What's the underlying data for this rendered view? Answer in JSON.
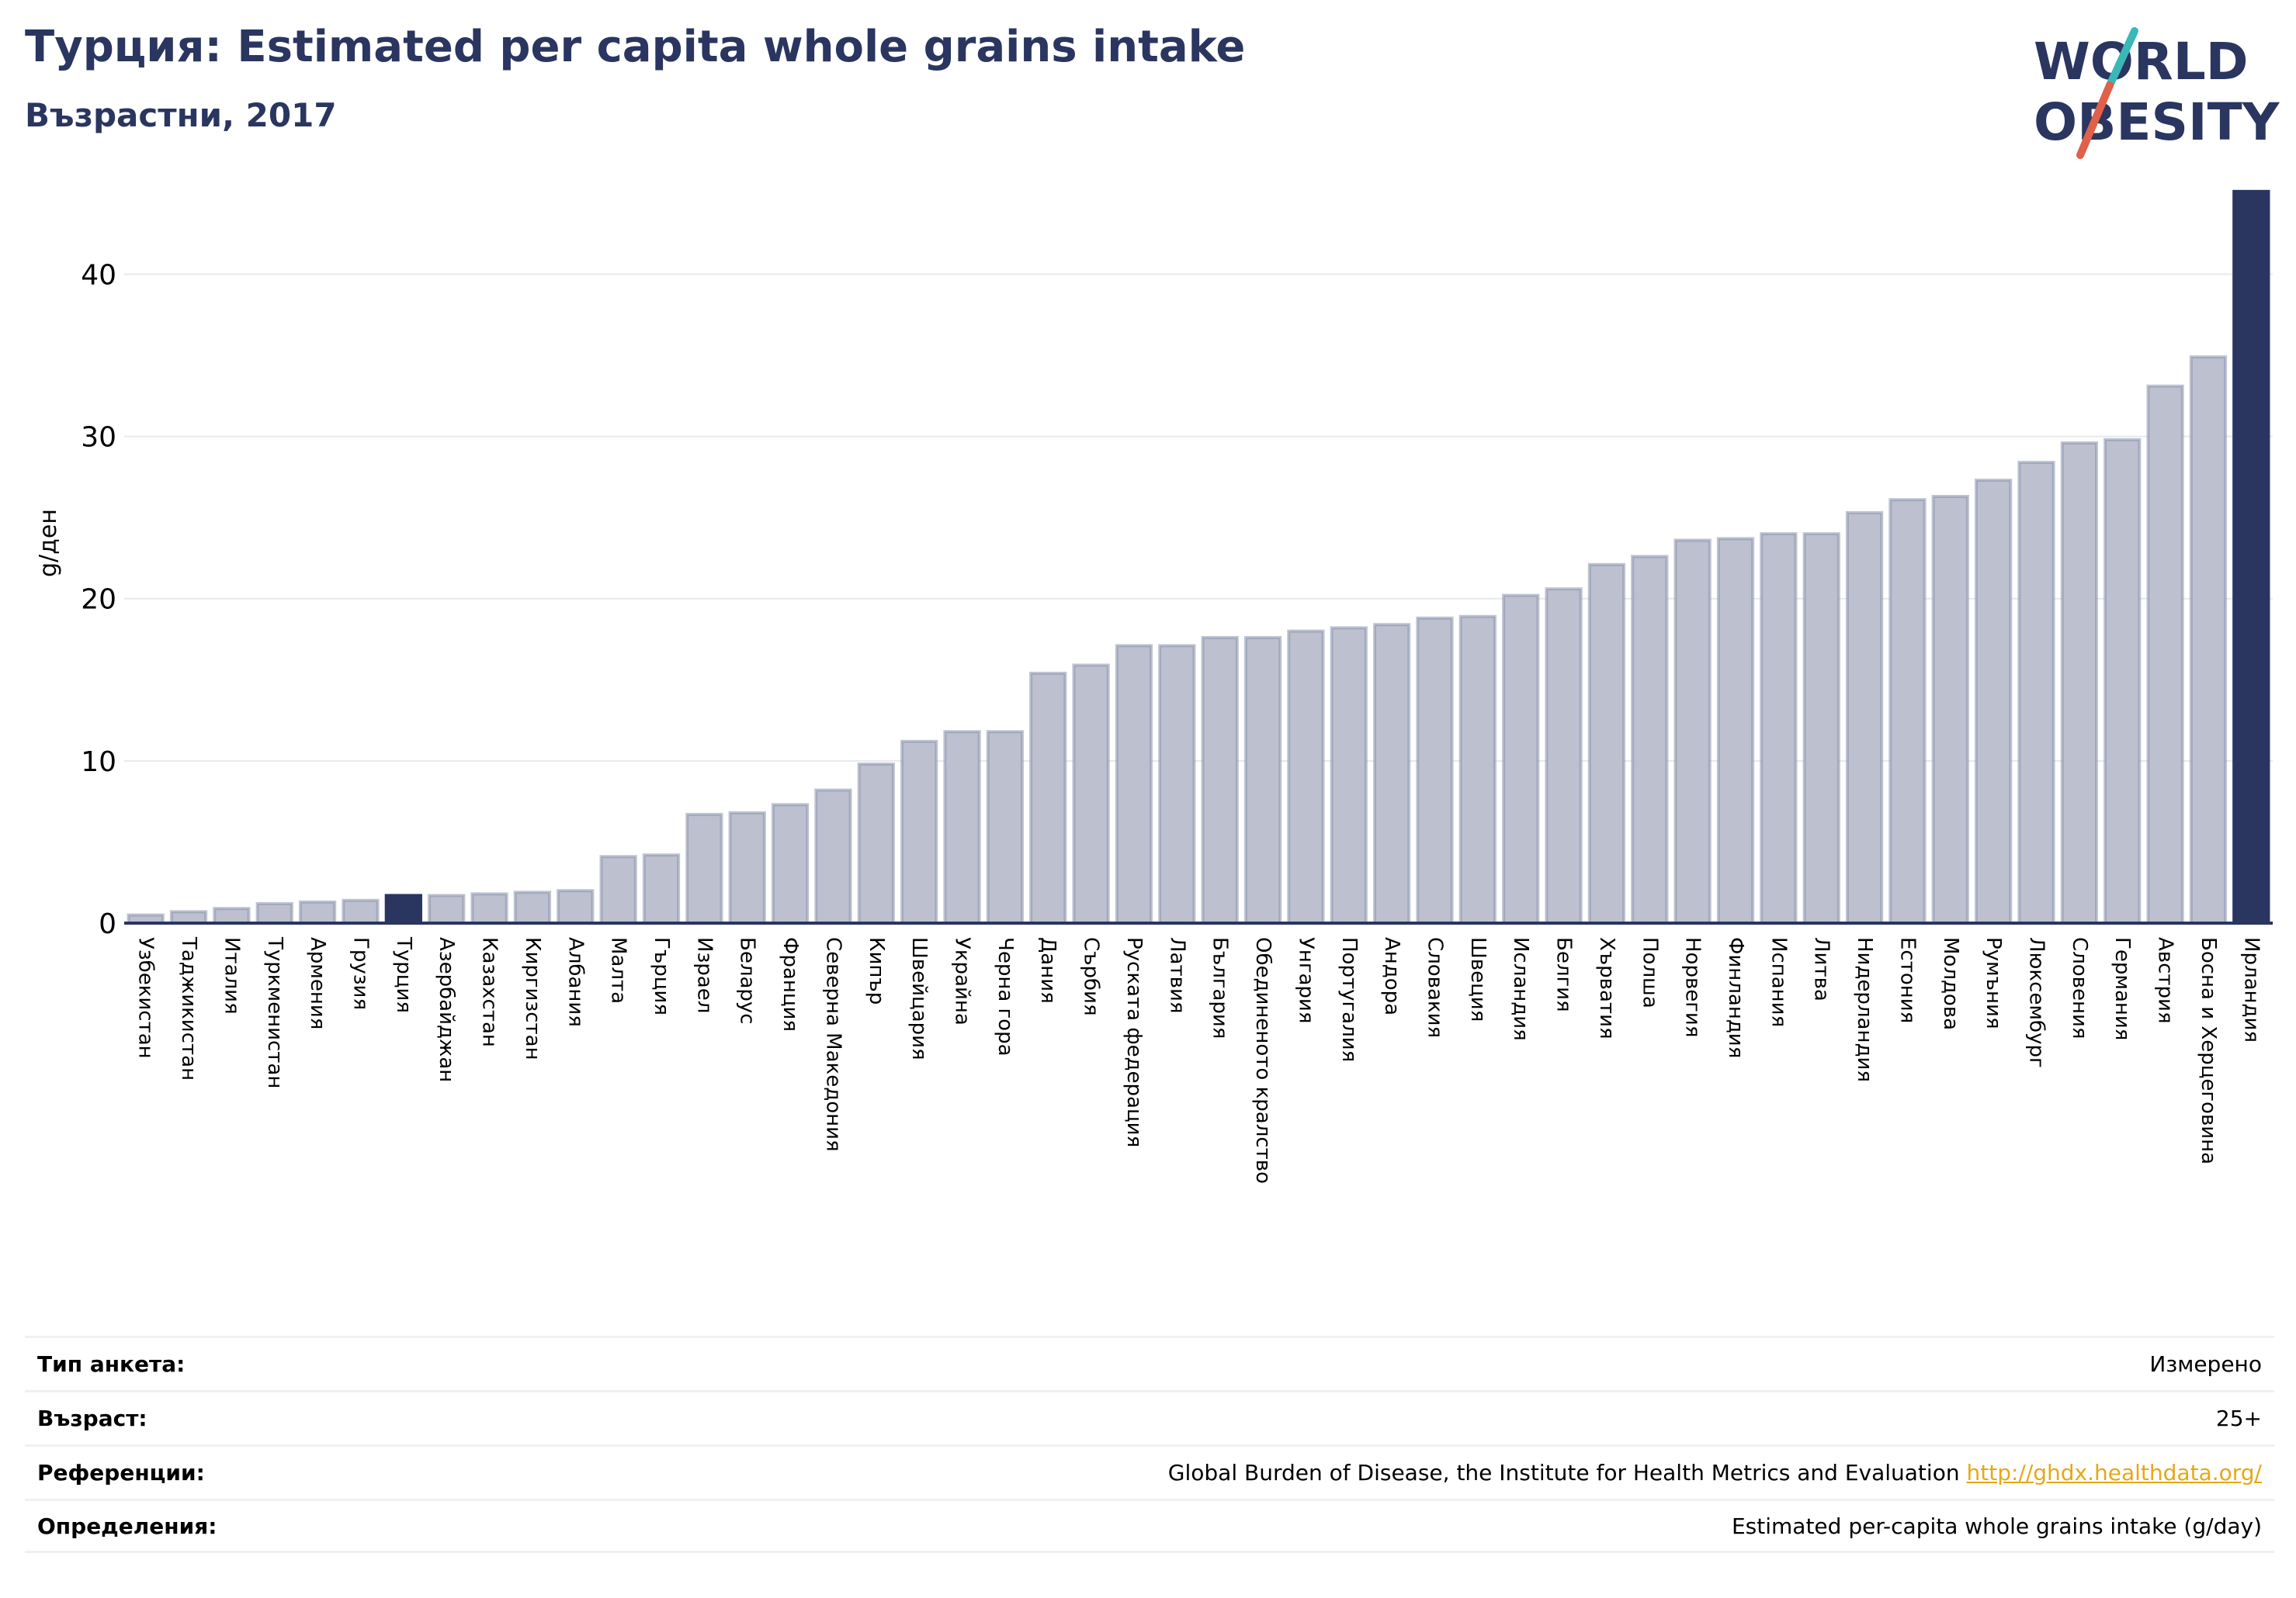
{
  "header": {
    "title": "Турция: Estimated per capita whole grains intake",
    "subtitle": "Възрастни, 2017"
  },
  "logo": {
    "line1": "WORLD",
    "line2": "OBESITY",
    "colors": {
      "text": "#2a3560",
      "slash_teal": "#3ab8b8",
      "slash_red": "#e0604a"
    }
  },
  "colors": {
    "bar": "#bcc0cf",
    "bar_stroke": "#8d93ad",
    "highlight": "#2a3560",
    "grid": "#e6e9ee",
    "axis": "#2a3560"
  },
  "chart_data": {
    "type": "bar",
    "title": "Турция: Estimated per capita whole grains intake",
    "subtitle": "Възрастни, 2017",
    "ylabel": "g/ден",
    "ylim": [
      0,
      46
    ],
    "yticks": [
      0,
      10,
      20,
      30,
      40
    ],
    "grid": true,
    "highlighted": [
      "Турция",
      "Ирландия"
    ],
    "categories": [
      "Узбекистан",
      "Таджикистан",
      "Италия",
      "Туркменистан",
      "Армения",
      "Грузия",
      "Турция",
      "Азербайджан",
      "Казахстан",
      "Киргизстан",
      "Албания",
      "Малта",
      "Гърция",
      "Израел",
      "Беларус",
      "Франция",
      "Северна Македония",
      "Кипър",
      "Швейцария",
      "Украйна",
      "Черна гора",
      "Дания",
      "Сърбия",
      "Руската федерация",
      "Латвия",
      "България",
      "Обединеното кралство",
      "Унгария",
      "Португалия",
      "Андора",
      "Словакия",
      "Швеция",
      "Исландия",
      "Белгия",
      "Хърватия",
      "Полша",
      "Норвегия",
      "Финландия",
      "Испания",
      "Литва",
      "Нидерландия",
      "Естония",
      "Молдова",
      "Румъния",
      "Люксембург",
      "Словения",
      "Германия",
      "Австрия",
      "Босна и Херцеговина",
      "Ирландия"
    ],
    "values": [
      0.5,
      0.7,
      0.9,
      1.2,
      1.3,
      1.4,
      1.7,
      1.7,
      1.8,
      1.9,
      2.0,
      4.1,
      4.2,
      6.7,
      6.8,
      7.3,
      8.2,
      9.8,
      11.2,
      11.8,
      11.8,
      15.4,
      15.9,
      17.1,
      17.1,
      17.6,
      17.6,
      18.0,
      18.2,
      18.4,
      18.8,
      18.9,
      20.2,
      20.6,
      22.1,
      22.6,
      23.6,
      23.7,
      24.0,
      24.0,
      25.3,
      26.1,
      26.3,
      27.3,
      28.4,
      29.6,
      29.8,
      33.1,
      34.9,
      45.1
    ]
  },
  "info": [
    {
      "key": "Тип анкета:",
      "value": "Измерено"
    },
    {
      "key": "Възраст:",
      "value": "25+"
    },
    {
      "key": "Референции:",
      "value": "Global Burden of Disease, the Institute for Health Metrics and Evaluation",
      "link": "http://ghdx.healthdata.org/"
    },
    {
      "key": "Определения:",
      "value": "Estimated per-capita whole grains intake (g/day)"
    }
  ]
}
